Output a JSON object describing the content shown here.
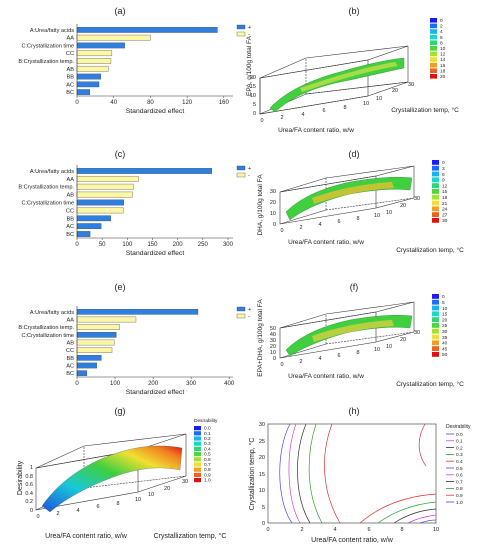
{
  "panel_labels": [
    "(a)",
    "(b)",
    "(c)",
    "(d)",
    "(e)",
    "(f)",
    "(g)",
    "(h)"
  ],
  "legend_plus": "+",
  "legend_minus": "-",
  "colors": {
    "positive": "#2f7fe0",
    "negative": "#fbf7a6",
    "surface_mid": "#3fcf3f"
  },
  "chart_data": [
    {
      "id": "a",
      "type": "bar",
      "categories": [
        "A:Urea/fatty acids",
        "AA",
        "C:Crystallization time",
        "CC",
        "B:Crystallization temp.",
        "AB",
        "BB",
        "AC",
        "BC"
      ],
      "values": [
        153,
        80,
        52,
        38,
        37,
        34,
        26,
        24,
        14
      ],
      "signs": [
        "+",
        "-",
        "+",
        "-",
        "-",
        "-",
        "+",
        "+",
        "+"
      ],
      "xlabel": "Standardized effect",
      "xticks": [
        0,
        40,
        80,
        120,
        160
      ],
      "xlim": [
        0,
        170
      ],
      "legend": "top-right"
    },
    {
      "id": "b",
      "type": "area",
      "zlabel": "EPA, g/100g total FA",
      "xlabel": "Urea/FA content ratio, w/w",
      "ylabel": "Crystallization temp, °C",
      "zticks": [
        0,
        5,
        10,
        15,
        20
      ],
      "xticks": [
        0,
        2,
        4,
        6,
        8,
        10
      ],
      "yticks": [
        10,
        20,
        30
      ],
      "colorbar": [
        0,
        2,
        4,
        6,
        8,
        10,
        12,
        14,
        16,
        18,
        20
      ]
    },
    {
      "id": "c",
      "type": "bar",
      "categories": [
        "A:Urea/fatty acids",
        "AA",
        "B:Crystallization temp.",
        "AB",
        "C:Crystallization time",
        "CC",
        "BB",
        "AC",
        "BC"
      ],
      "values": [
        268,
        122,
        112,
        110,
        93,
        92,
        67,
        48,
        26
      ],
      "signs": [
        "+",
        "-",
        "-",
        "-",
        "+",
        "-",
        "+",
        "+",
        "+"
      ],
      "xlabel": "Standardized effect",
      "xticks": [
        0,
        50,
        100,
        150,
        200,
        250,
        300
      ],
      "xlim": [
        0,
        310
      ],
      "legend": "top-right"
    },
    {
      "id": "d",
      "type": "area",
      "zlabel": "DHA, g/100g total FA",
      "xlabel": "Urea/FA content ratio, w/w",
      "ylabel": "Crystallization temp, °C",
      "zticks": [
        0,
        10,
        20,
        30
      ],
      "xticks": [
        0,
        2,
        4,
        6,
        8,
        10
      ],
      "yticks": [
        10,
        20,
        30
      ],
      "colorbar": [
        0,
        3,
        6,
        9,
        12,
        15,
        18,
        21,
        24,
        27,
        30
      ]
    },
    {
      "id": "e",
      "type": "bar",
      "categories": [
        "A:Urea/fatty acids",
        "AA",
        "B:Crystallization temp.",
        "C:Crystallization time",
        "AB",
        "CC",
        "BB",
        "AC",
        "BC"
      ],
      "values": [
        318,
        155,
        112,
        103,
        98,
        92,
        64,
        52,
        26
      ],
      "signs": [
        "+",
        "-",
        "-",
        "+",
        "-",
        "-",
        "+",
        "+",
        "+"
      ],
      "xlabel": "Standardized effect",
      "xticks": [
        0,
        100,
        200,
        300,
        400
      ],
      "xlim": [
        0,
        410
      ],
      "legend": "top-right"
    },
    {
      "id": "f",
      "type": "area",
      "zlabel": "EPA+DHA, g/100g total FA",
      "xlabel": "Urea/FA content ratio, w/w",
      "ylabel": "Crystallization temp, °C",
      "zticks": [
        0,
        10,
        20,
        30,
        40,
        50
      ],
      "xticks": [
        0,
        2,
        4,
        6,
        8,
        10
      ],
      "yticks": [
        10,
        20,
        30
      ],
      "colorbar": [
        0,
        5,
        10,
        15,
        20,
        25,
        30,
        35,
        40,
        45,
        50
      ]
    },
    {
      "id": "g",
      "type": "area",
      "zlabel": "Desirability",
      "xlabel": "Urea/FA content ratio, w/w",
      "ylabel": "Crystallization temp, °C",
      "zticks": [
        0,
        0.2,
        0.4,
        0.6,
        0.8,
        1
      ],
      "xticks": [
        0,
        2,
        4,
        6,
        8,
        10
      ],
      "yticks": [
        10,
        20,
        30
      ],
      "legend_title": "Desirability",
      "colorbar": [
        "0.0",
        "0.1",
        "0.2",
        "0.3",
        "0.4",
        "0.5",
        "0.6",
        "0.7",
        "0.8",
        "0.9",
        "1.0"
      ]
    },
    {
      "id": "h",
      "type": "line",
      "xlabel": "Urea/FA content ratio, w/w",
      "ylabel": "Crystallization temp, °C",
      "xticks": [
        0,
        2,
        4,
        6,
        8,
        10
      ],
      "yticks": [
        0,
        5,
        10,
        15,
        20,
        25,
        30
      ],
      "xlim": [
        0,
        10
      ],
      "ylim": [
        0,
        30
      ],
      "legend_title": "Desirability",
      "levels": [
        "0.0",
        "0.1",
        "0.2",
        "0.3",
        "0.4",
        "0.5",
        "0.6",
        "0.7",
        "0.8",
        "0.9",
        "1.0"
      ]
    }
  ]
}
